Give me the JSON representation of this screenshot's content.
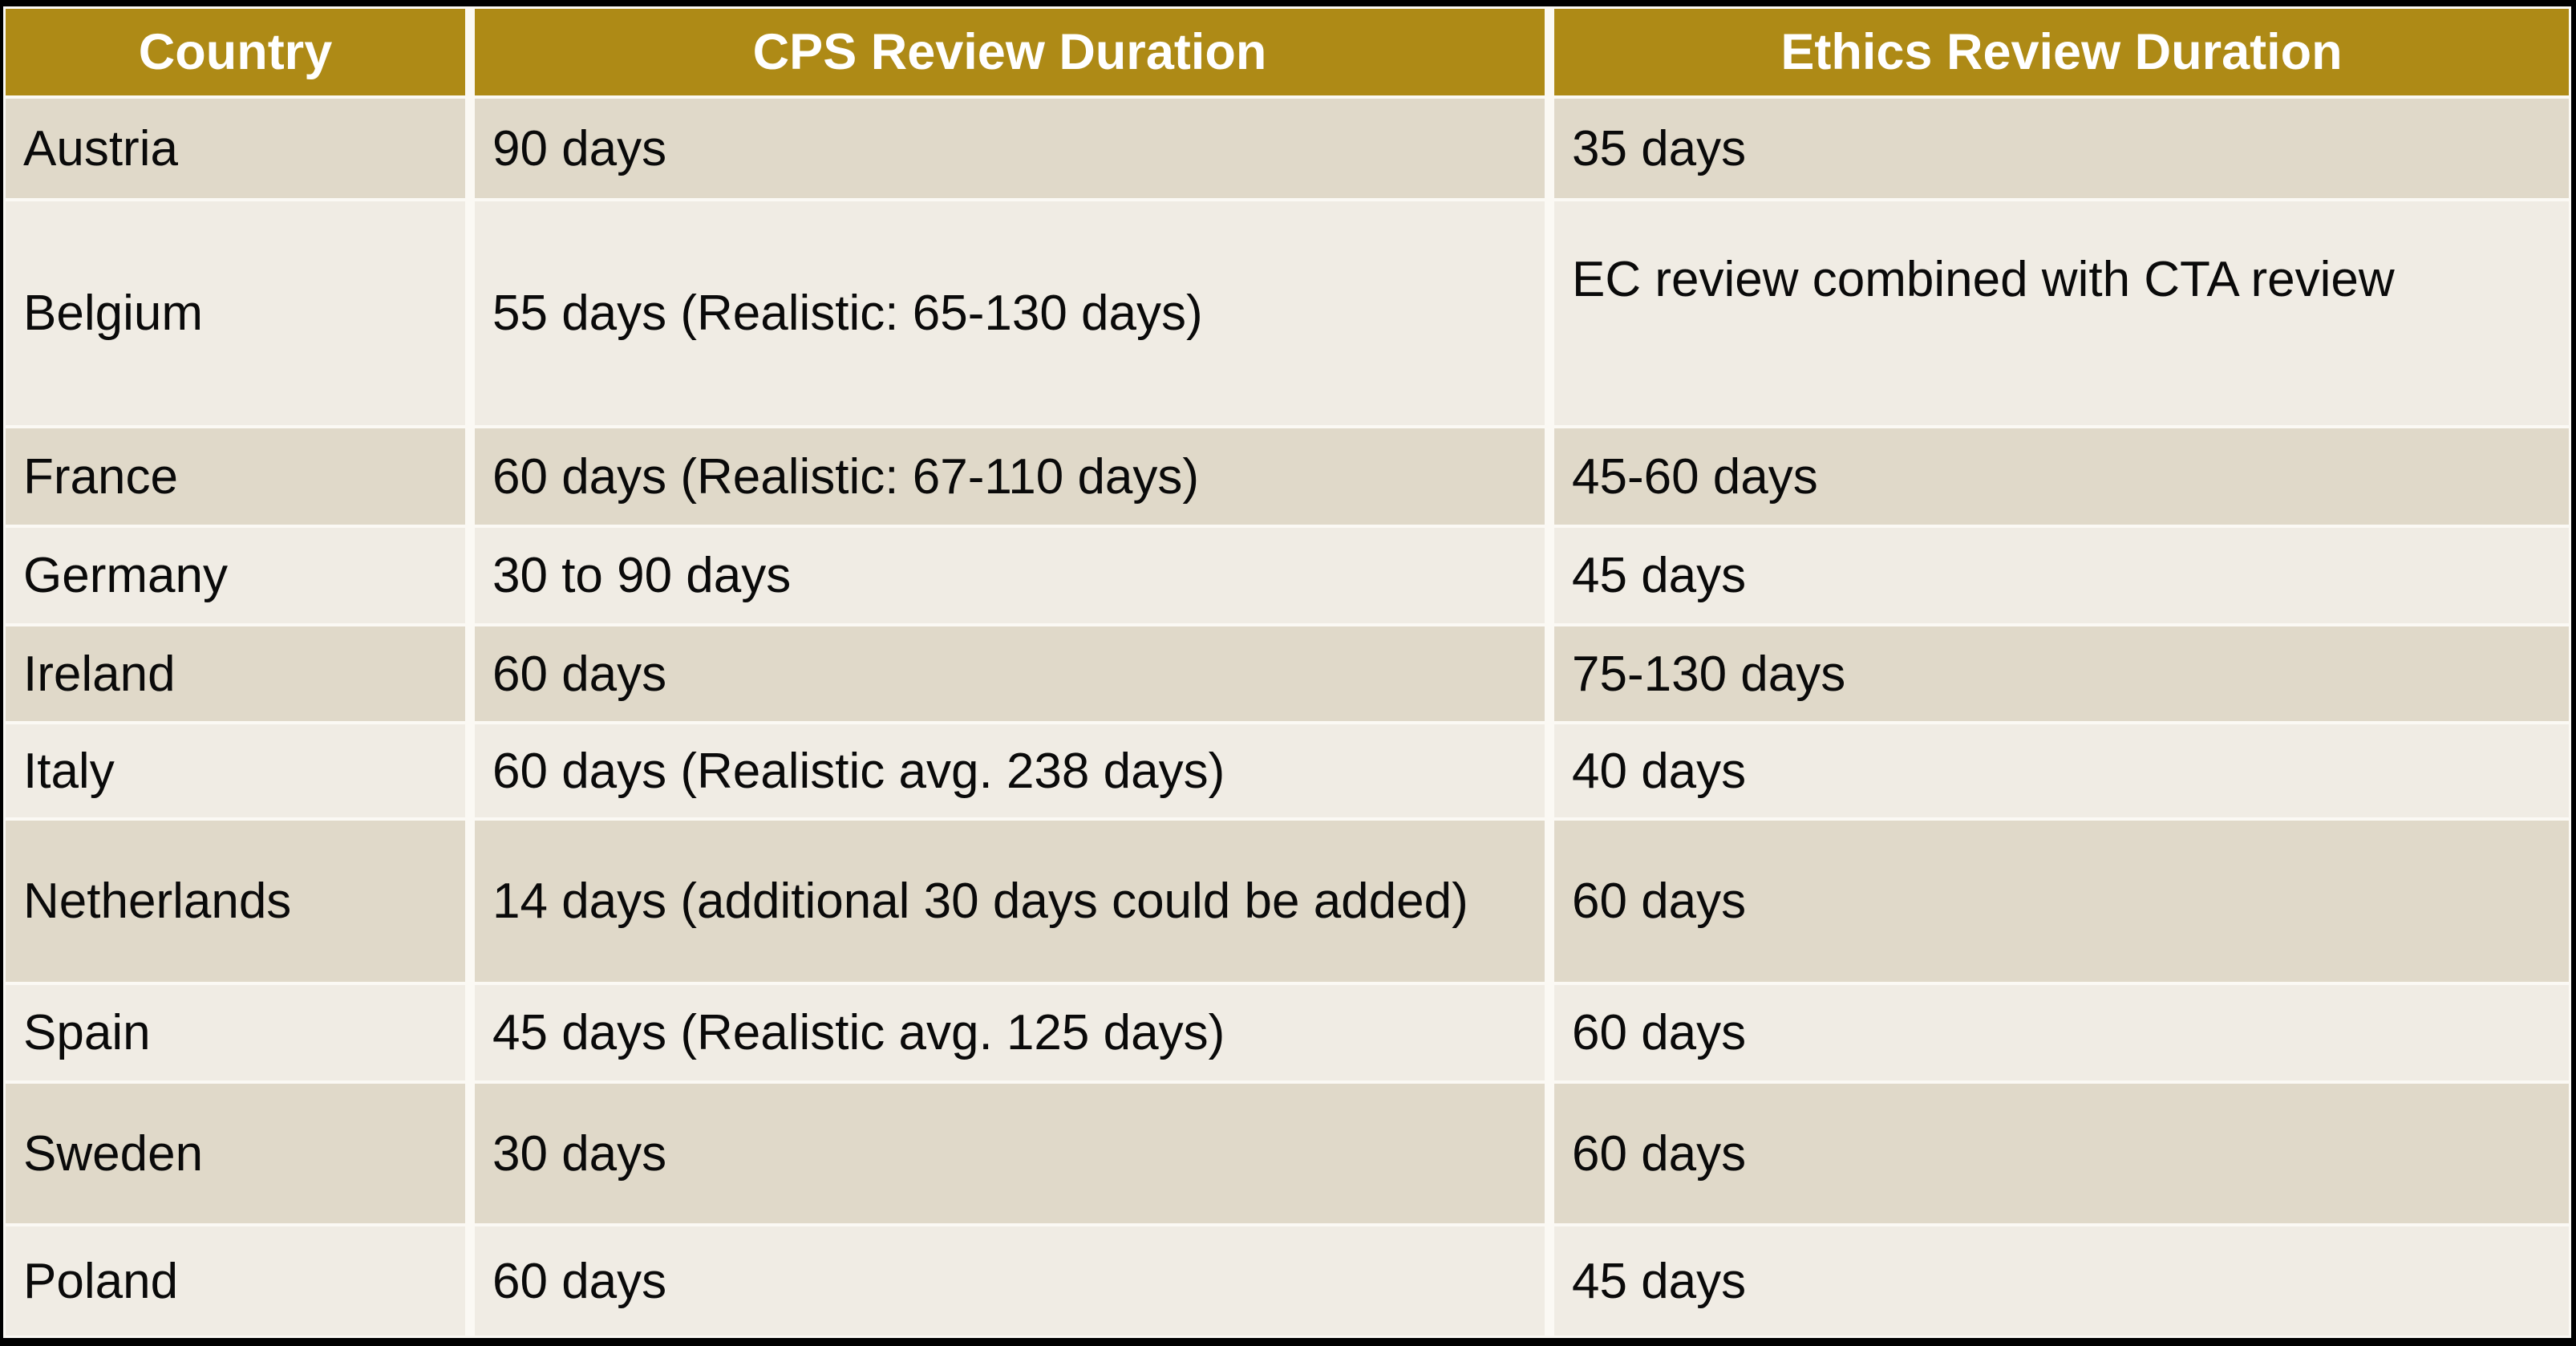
{
  "colors": {
    "header_bg": "#ae8a16",
    "header_text": "#ffffff",
    "row_dark": "#e0d9c9",
    "row_light": "#f0ece4",
    "gridline": "#fbf9f4",
    "frame": "#000000",
    "text": "#0a0a0a"
  },
  "chart_data": {
    "type": "table",
    "title": "",
    "columns": [
      "Country",
      "CPS Review Duration",
      "Ethics Review Duration"
    ],
    "rows": [
      {
        "country": "Austria",
        "cps": "90 days",
        "ethics": "35 days"
      },
      {
        "country": "Belgium",
        "cps": "55 days (Realistic: 65-130 days)",
        "ethics": "EC review combined with CTA review"
      },
      {
        "country": "France",
        "cps": "60 days (Realistic: 67-110 days)",
        "ethics": "45-60 days"
      },
      {
        "country": "Germany",
        "cps": "30 to 90 days",
        "ethics": "45 days"
      },
      {
        "country": "Ireland",
        "cps": "60 days",
        "ethics": "75-130 days"
      },
      {
        "country": "Italy",
        "cps": "60 days (Realistic avg. 238 days)",
        "ethics": "40 days"
      },
      {
        "country": "Netherlands",
        "cps": "14 days (additional 30 days could be added)",
        "ethics": "60 days"
      },
      {
        "country": "Spain",
        "cps": "45 days (Realistic avg. 125 days)",
        "ethics": "60 days"
      },
      {
        "country": "Sweden",
        "cps": "30 days",
        "ethics": "60 days"
      },
      {
        "country": "Poland",
        "cps": "60 days",
        "ethics": "45 days"
      }
    ]
  }
}
